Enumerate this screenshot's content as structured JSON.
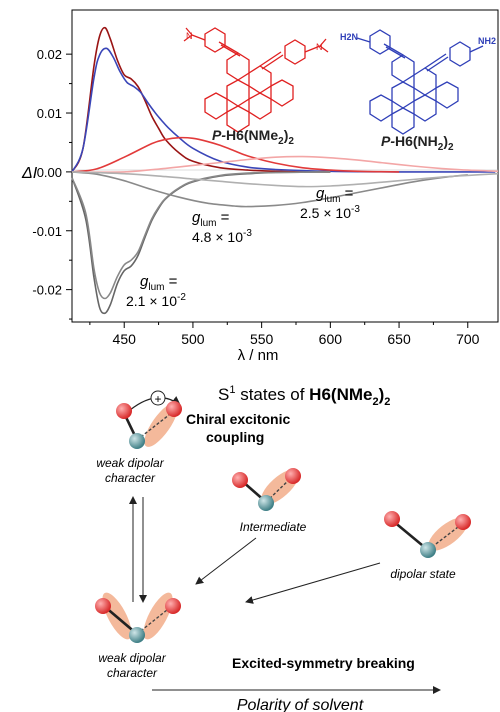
{
  "chart_data": {
    "type": "line",
    "xlabel": "λ / nm",
    "ylabel": "ΔI",
    "xlim": [
      412,
      722
    ],
    "ylim": [
      -0.0255,
      0.0275
    ],
    "x_ticks": [
      450,
      500,
      550,
      600,
      650,
      700
    ],
    "y_ticks": [
      0.02,
      0.01,
      0.0,
      -0.01,
      -0.02
    ],
    "x_tick_labels": [
      "450",
      "500",
      "550",
      "600",
      "650",
      "700"
    ],
    "y_tick_labels": [
      "0.02",
      "0.01",
      "0.00",
      "-0.01",
      "-0.02"
    ],
    "series": [
      {
        "color": "#9a1414",
        "x": [
          412,
          420,
          428,
          432,
          436,
          440,
          445,
          450,
          455,
          460,
          465,
          470,
          475,
          480,
          490,
          500,
          520,
          540,
          560,
          600
        ],
        "y": [
          0.0,
          0.004,
          0.018,
          0.023,
          0.0245,
          0.0225,
          0.019,
          0.0165,
          0.0158,
          0.0145,
          0.0122,
          0.0095,
          0.0074,
          0.0055,
          0.0032,
          0.0018,
          0.0007,
          0.0003,
          0.0001,
          0.0
        ]
      },
      {
        "color": "#3a46b8",
        "x": [
          412,
          420,
          428,
          432,
          437,
          442,
          447,
          452,
          457,
          462,
          467,
          472,
          477,
          482,
          490,
          500,
          520,
          540,
          560,
          600,
          650,
          720
        ],
        "y": [
          0.0,
          0.004,
          0.016,
          0.0198,
          0.021,
          0.0195,
          0.017,
          0.0152,
          0.0145,
          0.0135,
          0.0118,
          0.0102,
          0.0088,
          0.0075,
          0.0058,
          0.004,
          0.0018,
          0.0008,
          0.0004,
          0.0001,
          0.0,
          0.0
        ]
      },
      {
        "color": "#e23a3a",
        "x": [
          412,
          430,
          450,
          470,
          480,
          490,
          500,
          510,
          520,
          530,
          540,
          560,
          580,
          600,
          620,
          650
        ],
        "y": [
          0.0,
          0.0005,
          0.0025,
          0.0048,
          0.0055,
          0.0058,
          0.0057,
          0.0052,
          0.0045,
          0.0036,
          0.0027,
          0.0015,
          0.0007,
          0.0003,
          0.0001,
          0.0
        ]
      },
      {
        "color": "#f3a6a6",
        "x": [
          412,
          450,
          480,
          500,
          520,
          540,
          560,
          580,
          600,
          620,
          640,
          660,
          680,
          700,
          722
        ],
        "y": [
          0.0,
          0.0,
          0.0006,
          0.0011,
          0.0016,
          0.0021,
          0.0025,
          0.0026,
          0.0024,
          0.002,
          0.0015,
          0.001,
          0.0006,
          0.0003,
          0.0001
        ]
      },
      {
        "color": "#666666",
        "x": [
          412,
          422,
          428,
          432,
          436,
          440,
          445,
          450,
          455,
          460,
          465,
          470,
          475,
          480,
          490,
          500,
          520,
          540,
          560,
          600
        ],
        "y": [
          -0.001,
          -0.008,
          -0.018,
          -0.023,
          -0.024,
          -0.0225,
          -0.019,
          -0.0168,
          -0.016,
          -0.0142,
          -0.0112,
          -0.0083,
          -0.0062,
          -0.0046,
          -0.0028,
          -0.0017,
          -0.0007,
          -0.0003,
          -0.0001,
          0.0
        ]
      },
      {
        "color": "#888888",
        "x": [
          412,
          422,
          428,
          432,
          436,
          440,
          445,
          450,
          455,
          460,
          465,
          470,
          475,
          480,
          490,
          500,
          520,
          540,
          560,
          600
        ],
        "y": [
          -0.001,
          -0.007,
          -0.0165,
          -0.0205,
          -0.0215,
          -0.0205,
          -0.0178,
          -0.0158,
          -0.015,
          -0.0136,
          -0.0108,
          -0.008,
          -0.006,
          -0.0045,
          -0.0027,
          -0.0016,
          -0.0006,
          -0.0002,
          -0.0001,
          0.0
        ]
      },
      {
        "color": "#8a8a8a",
        "x": [
          412,
          430,
          450,
          470,
          490,
          510,
          530,
          540,
          560,
          580,
          600,
          620,
          640,
          660,
          680,
          700
        ],
        "y": [
          0.0,
          -0.0004,
          -0.0015,
          -0.003,
          -0.0043,
          -0.0053,
          -0.0058,
          -0.0059,
          -0.0057,
          -0.0052,
          -0.0044,
          -0.0035,
          -0.0026,
          -0.0017,
          -0.001,
          -0.0005
        ]
      },
      {
        "color": "#b0b0b0",
        "x": [
          412,
          450,
          480,
          500,
          520,
          540,
          560,
          580,
          600,
          620,
          640,
          660,
          680,
          700,
          722
        ],
        "y": [
          0.0,
          -0.0003,
          -0.0008,
          -0.0012,
          -0.0016,
          -0.002,
          -0.0023,
          -0.0025,
          -0.0024,
          -0.0021,
          -0.0017,
          -0.0013,
          -0.0009,
          -0.0006,
          -0.0003
        ]
      }
    ],
    "annotations": [
      {
        "sym": "g",
        "sub": "lum",
        "eq": " =",
        "value": "4.8 × 10",
        "exp": "-3"
      },
      {
        "sym": "g",
        "sub": "lum",
        "eq": " =",
        "value": "2.5 × 10",
        "exp": "-3"
      },
      {
        "sym": "g",
        "sub": "lum",
        "eq": " =",
        "value": "2.1 × 10",
        "exp": "-2"
      }
    ]
  },
  "molecules": {
    "red": {
      "label_prefix": "P-",
      "label_main": "H6(NMe",
      "label_sub": "2",
      "label_close": ")",
      "label_sub2": "2",
      "color": "#e02020",
      "group_left": "N",
      "group_right": "N"
    },
    "blue": {
      "label_prefix": "P-",
      "label_main": "H6(NH",
      "label_sub": "2",
      "label_close": ")",
      "label_sub2": "2",
      "color": "#2f3fb8",
      "group_left": "H2N",
      "group_right": "NH2"
    }
  },
  "diagram": {
    "title_pre": "S",
    "title_sup": "1",
    "title_mid": " states of ",
    "title_bold": "H6(NMe",
    "title_sub": "2",
    "title_close": ")",
    "title_sub2": "2",
    "plus_symbol": "+",
    "labels": {
      "chiral": "Chiral excitonic",
      "coupling": "coupling",
      "weak_top_1": "weak dipolar",
      "weak_top_2": "character",
      "intermediate": "Intermediate",
      "dipolar": "dipolar state",
      "weak_bottom_1": "weak dipolar",
      "weak_bottom_2": "character",
      "esb": "Excited-symmetry breaking",
      "polarity": "Polarity of solvent"
    },
    "colors": {
      "atom": "#e34a4a",
      "center": "#5e9aa0",
      "lobe": "#f4b99b"
    }
  }
}
